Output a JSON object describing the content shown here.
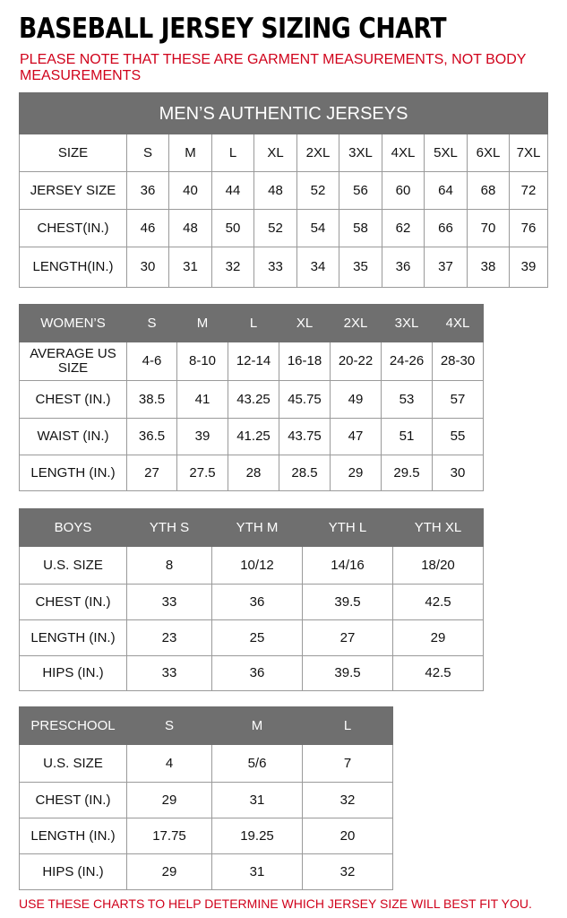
{
  "title": "BASEBALL JERSEY SIZING CHART",
  "note": "PLEASE NOTE THAT THESE ARE GARMENT MEASUREMENTS, NOT BODY MEASUREMENTS",
  "footer": "USE THESE CHARTS TO HELP DETERMINE WHICH JERSEY SIZE WILL BEST FIT YOU.",
  "colors": {
    "header_bg": "#6f6f6f",
    "note_red": "#d0021b",
    "border": "#9a9a9a"
  },
  "tables": [
    {
      "name": "mens",
      "caption": "MEN’S AUTHENTIC JERSEYS",
      "header_dark": false,
      "rows": [
        [
          "SIZE",
          "S",
          "M",
          "L",
          "XL",
          "2XL",
          "3XL",
          "4XL",
          "5XL",
          "6XL",
          "7XL"
        ],
        [
          "JERSEY SIZE",
          "36",
          "40",
          "44",
          "48",
          "52",
          "56",
          "60",
          "64",
          "68",
          "72"
        ],
        [
          "CHEST(IN.)",
          "46",
          "48",
          "50",
          "52",
          "54",
          "58",
          "62",
          "66",
          "70",
          "76"
        ],
        [
          "LENGTH(IN.)",
          "30",
          "31",
          "32",
          "33",
          "34",
          "35",
          "36",
          "37",
          "38",
          "39"
        ]
      ]
    },
    {
      "name": "womens",
      "header_dark": true,
      "rows": [
        [
          "WOMEN’S",
          "S",
          "M",
          "L",
          "XL",
          "2XL",
          "3XL",
          "4XL"
        ],
        [
          "AVERAGE US SIZE",
          "4-6",
          "8-10",
          "12-14",
          "16-18",
          "20-22",
          "24-26",
          "28-30"
        ],
        [
          "CHEST (IN.)",
          "38.5",
          "41",
          "43.25",
          "45.75",
          "49",
          "53",
          "57"
        ],
        [
          "WAIST (IN.)",
          "36.5",
          "39",
          "41.25",
          "43.75",
          "47",
          "51",
          "55"
        ],
        [
          "LENGTH (IN.)",
          "27",
          "27.5",
          "28",
          "28.5",
          "29",
          "29.5",
          "30"
        ]
      ]
    },
    {
      "name": "boys",
      "header_dark": true,
      "rows": [
        [
          "BOYS",
          "YTH S",
          "YTH M",
          "YTH L",
          "YTH XL"
        ],
        [
          "U.S. SIZE",
          "8",
          "10/12",
          "14/16",
          "18/20"
        ],
        [
          "CHEST (IN.)",
          "33",
          "36",
          "39.5",
          "42.5"
        ],
        [
          "LENGTH (IN.)",
          "23",
          "25",
          "27",
          "29"
        ],
        [
          "HIPS (IN.)",
          "33",
          "36",
          "39.5",
          "42.5"
        ]
      ]
    },
    {
      "name": "preschool",
      "header_dark": true,
      "rows": [
        [
          "PRESCHOOL",
          "S",
          "M",
          "L"
        ],
        [
          "U.S. SIZE",
          "4",
          "5/6",
          "7"
        ],
        [
          "CHEST (IN.)",
          "29",
          "31",
          "32"
        ],
        [
          "LENGTH (IN.)",
          "17.75",
          "19.25",
          "20"
        ],
        [
          "HIPS (IN.)",
          "29",
          "31",
          "32"
        ]
      ]
    }
  ]
}
